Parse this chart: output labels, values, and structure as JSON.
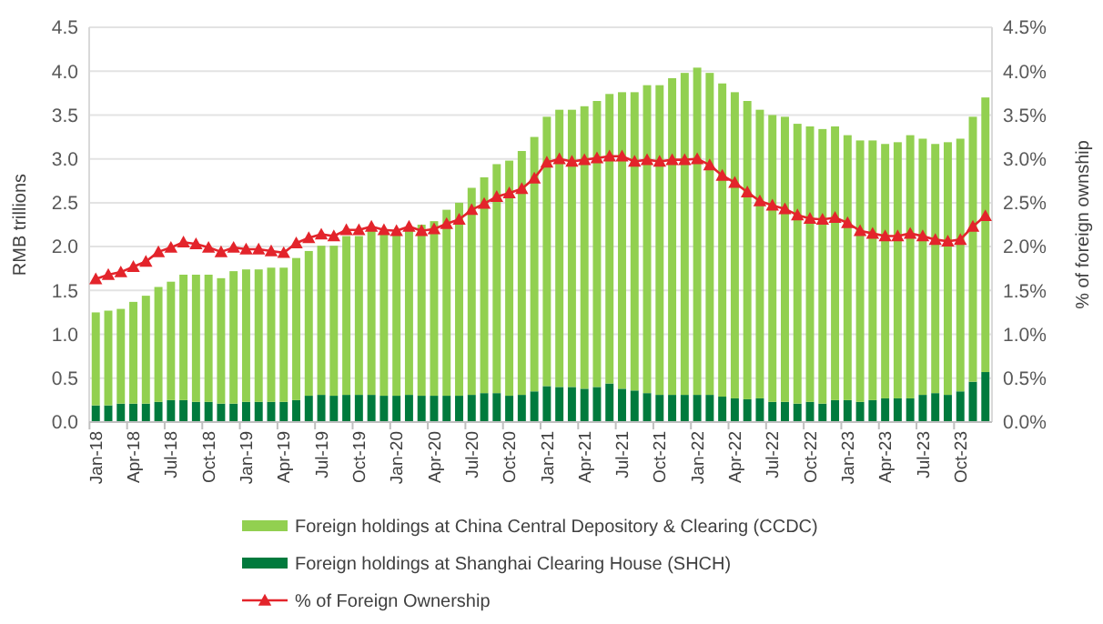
{
  "chart_data": {
    "type": "bar",
    "stacked": true,
    "ylabel": "RMB trillions",
    "y2label": "% of foreign ownship",
    "categories": [
      "Jan-18",
      null,
      null,
      "Apr-18",
      null,
      null,
      "Jul-18",
      null,
      null,
      "Oct-18",
      null,
      null,
      "Jan-19",
      null,
      null,
      "Apr-19",
      null,
      null,
      "Jul-19",
      null,
      null,
      "Oct-19",
      null,
      null,
      "Jan-20",
      null,
      null,
      "Apr-20",
      null,
      null,
      "Jul-20",
      null,
      null,
      "Oct-20",
      null,
      null,
      "Jan-21",
      null,
      null,
      "Apr-21",
      null,
      null,
      "Jul-21",
      null,
      null,
      "Oct-21",
      null,
      null,
      "Jan-22",
      null,
      null,
      "Apr-22",
      null,
      null,
      "Jul-22",
      null,
      null,
      "Oct-22",
      null,
      null,
      "Jan-23",
      null,
      null,
      "Apr-23",
      null,
      null,
      "Jul-23",
      null,
      null,
      "Oct-23",
      null,
      null
    ],
    "series": [
      {
        "name": "Foreign holdings at Shanghai Clearing House (SHCH)",
        "color": "#007a3d",
        "values": [
          0.19,
          0.19,
          0.21,
          0.21,
          0.21,
          0.23,
          0.25,
          0.25,
          0.23,
          0.23,
          0.21,
          0.21,
          0.23,
          0.23,
          0.23,
          0.23,
          0.25,
          0.3,
          0.31,
          0.3,
          0.31,
          0.31,
          0.31,
          0.3,
          0.3,
          0.31,
          0.3,
          0.3,
          0.3,
          0.3,
          0.31,
          0.33,
          0.33,
          0.3,
          0.31,
          0.35,
          0.41,
          0.4,
          0.4,
          0.38,
          0.4,
          0.44,
          0.38,
          0.36,
          0.33,
          0.31,
          0.31,
          0.31,
          0.31,
          0.31,
          0.29,
          0.27,
          0.26,
          0.27,
          0.23,
          0.23,
          0.21,
          0.23,
          0.21,
          0.25,
          0.25,
          0.23,
          0.25,
          0.27,
          0.27,
          0.27,
          0.31,
          0.33,
          0.31,
          0.35,
          0.46,
          0.57
        ]
      },
      {
        "name": "Foreign holdings at China Central Depository & Clearing (CCDC)",
        "color": "#92d050",
        "values": [
          1.06,
          1.08,
          1.08,
          1.16,
          1.23,
          1.31,
          1.35,
          1.43,
          1.45,
          1.45,
          1.43,
          1.51,
          1.51,
          1.51,
          1.53,
          1.53,
          1.62,
          1.65,
          1.7,
          1.71,
          1.81,
          1.81,
          1.88,
          1.86,
          1.85,
          1.88,
          1.95,
          1.99,
          2.12,
          2.2,
          2.36,
          2.46,
          2.61,
          2.68,
          2.78,
          2.9,
          3.07,
          3.16,
          3.16,
          3.22,
          3.26,
          3.3,
          3.38,
          3.4,
          3.51,
          3.53,
          3.61,
          3.67,
          3.73,
          3.67,
          3.57,
          3.49,
          3.4,
          3.29,
          3.27,
          3.25,
          3.19,
          3.14,
          3.13,
          3.12,
          3.02,
          2.98,
          2.96,
          2.9,
          2.92,
          3.0,
          2.92,
          2.84,
          2.88,
          2.88,
          3.02,
          3.13
        ]
      },
      {
        "name": "% of Foreign Ownership",
        "type": "line",
        "axis": "y2",
        "color": "#e3242b",
        "marker": "triangle",
        "values": [
          1.63,
          1.68,
          1.71,
          1.77,
          1.83,
          1.94,
          1.99,
          2.05,
          2.03,
          1.99,
          1.94,
          1.99,
          1.97,
          1.97,
          1.95,
          1.93,
          2.04,
          2.1,
          2.14,
          2.12,
          2.19,
          2.19,
          2.23,
          2.19,
          2.18,
          2.23,
          2.18,
          2.2,
          2.26,
          2.31,
          2.42,
          2.49,
          2.57,
          2.61,
          2.66,
          2.78,
          2.96,
          3.0,
          2.97,
          2.99,
          3.01,
          3.03,
          3.03,
          2.97,
          2.99,
          2.97,
          2.99,
          2.99,
          3.0,
          2.93,
          2.81,
          2.73,
          2.62,
          2.52,
          2.47,
          2.43,
          2.36,
          2.32,
          2.31,
          2.33,
          2.27,
          2.18,
          2.15,
          2.12,
          2.12,
          2.15,
          2.12,
          2.08,
          2.06,
          2.08,
          2.23,
          2.35
        ]
      }
    ],
    "ylim": [
      0,
      4.5
    ],
    "yticks": [
      {
        "value": 0,
        "label": "0.0"
      },
      {
        "value": 0.5,
        "label": "0.5"
      },
      {
        "value": 1,
        "label": "1.0"
      },
      {
        "value": 1.5,
        "label": "1.5"
      },
      {
        "value": 2,
        "label": "2.0"
      },
      {
        "value": 2.5,
        "label": "2.5"
      },
      {
        "value": 3,
        "label": "3.0"
      },
      {
        "value": 3.5,
        "label": "3.5"
      },
      {
        "value": 4,
        "label": "4.0"
      },
      {
        "value": 4.5,
        "label": "4.5"
      }
    ],
    "y2lim": [
      0,
      4.5
    ],
    "y2ticks": [
      {
        "value": 0,
        "label": "0.0%"
      },
      {
        "value": 0.5,
        "label": "0.5%"
      },
      {
        "value": 1,
        "label": "1.0%"
      },
      {
        "value": 1.5,
        "label": "1.5%"
      },
      {
        "value": 2,
        "label": "2.0%"
      },
      {
        "value": 2.5,
        "label": "2.5%"
      },
      {
        "value": 3,
        "label": "3.0%"
      },
      {
        "value": 3.5,
        "label": "3.5%"
      },
      {
        "value": 4,
        "label": "4.0%"
      },
      {
        "value": 4.5,
        "label": "4.5%"
      }
    ],
    "grid": "y",
    "legend": "bottom"
  }
}
